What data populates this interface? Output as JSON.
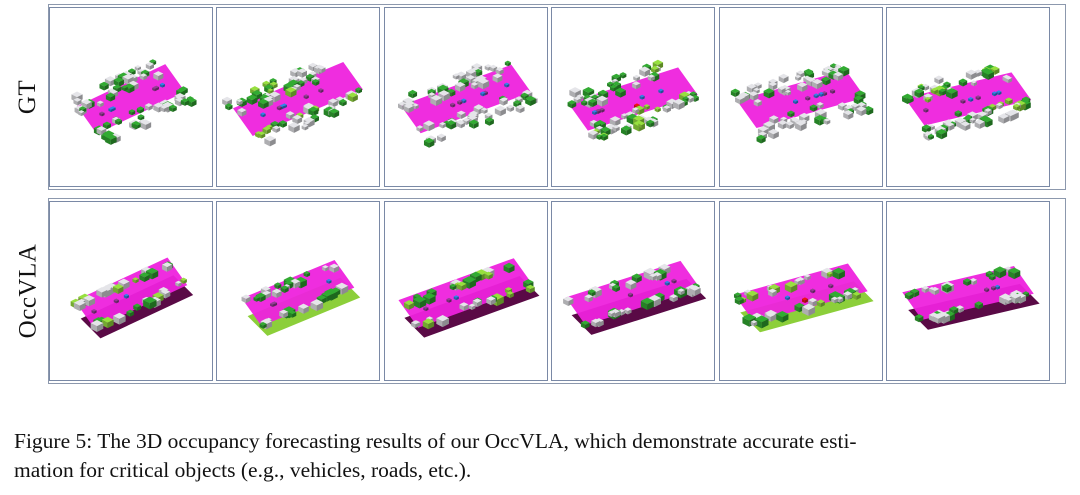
{
  "rows": [
    {
      "label": "GT"
    },
    {
      "label": "OccVLA"
    }
  ],
  "caption": {
    "line1": "Figure 5: The 3D occupancy forecasting results of our OccVLA, which demonstrate accurate esti-",
    "line2": "mation for critical objects (e.g., vehicles, roads, etc.)."
  },
  "colors": {
    "road": "#ee22dd",
    "sidewalk": "#5a0a46",
    "vegetation": "#2e9e2e",
    "terrain": "#8ccf3a",
    "manmade": "#d4d4d8",
    "car": "#2a7dd6",
    "truck": "#8a3a8a",
    "pedestrian": "#e01010",
    "frame": "#7a89a6"
  }
}
